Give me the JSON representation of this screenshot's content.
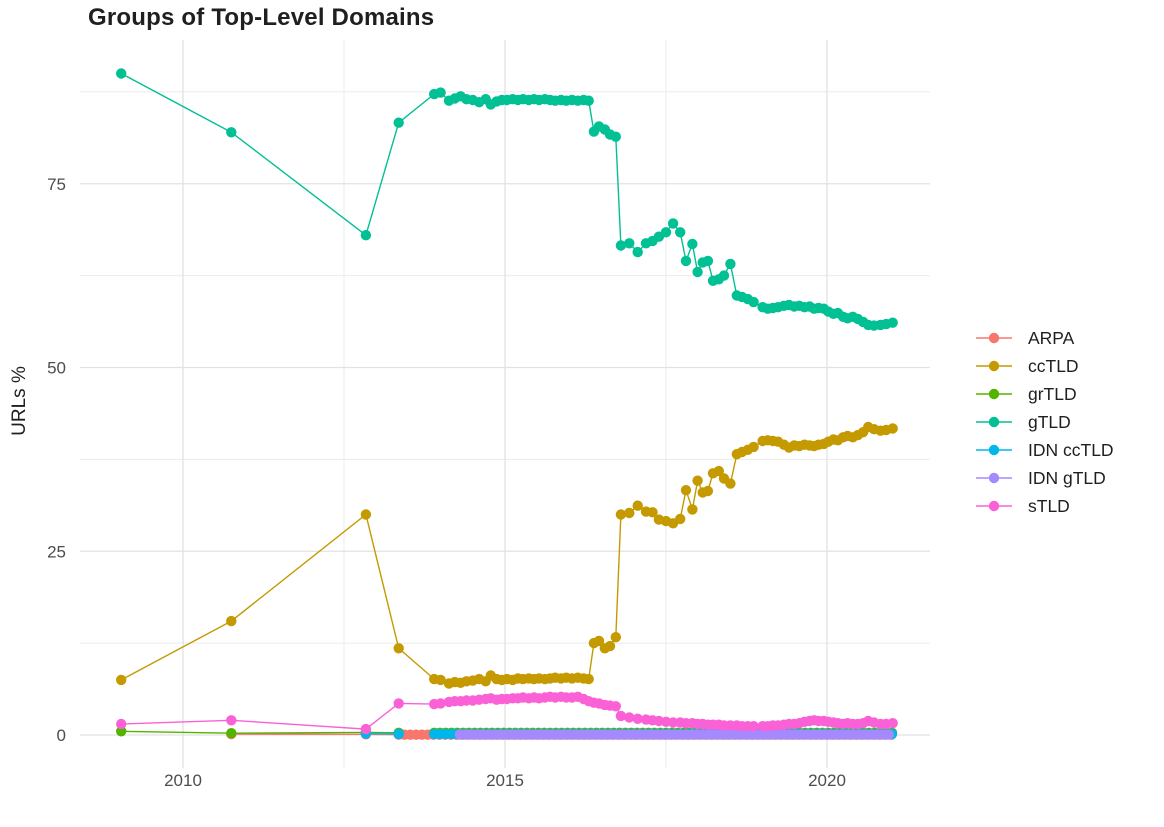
{
  "chart_data": {
    "type": "line",
    "title": "Groups of Top-Level Domains",
    "xlabel": "",
    "ylabel": "URLs %",
    "grid": "major and minor, light gray, no panel border (ggplot minimal theme)",
    "legend_position": "right",
    "axis_text_color": "#4d4d4d",
    "text_color": "#1f1f1f",
    "background_color": "#ffffff",
    "major_grid_color": "#e2e2e2",
    "minor_grid_color": "#ebebeb",
    "xlim": [
      2008.4,
      2021.6
    ],
    "ylim": [
      -4.5,
      94.6
    ],
    "x_ticks": [
      {
        "value": 2010,
        "label": "2010"
      },
      {
        "value": 2015,
        "label": "2015"
      },
      {
        "value": 2020,
        "label": "2020"
      }
    ],
    "x_minor_ticks": [
      2012.5,
      2017.5
    ],
    "y_ticks": [
      {
        "value": 0,
        "label": "0"
      },
      {
        "value": 25,
        "label": "25"
      },
      {
        "value": 50,
        "label": "50"
      },
      {
        "value": 75,
        "label": "75"
      }
    ],
    "y_minor_ticks": [
      12.5,
      37.5,
      62.5,
      87.5
    ],
    "series": [
      {
        "name": "ARPA",
        "color": "#F8766D",
        "points": [
          [
            2010.75,
            0.12
          ],
          [
            2012.84,
            0.1
          ]
        ],
        "flat": {
          "from": 2013.35,
          "to": 2021.02,
          "step": 0.09,
          "value": 0.04
        }
      },
      {
        "name": "ccTLD",
        "color": "#C49A00",
        "points": [
          [
            2009.04,
            7.5
          ],
          [
            2010.75,
            15.5
          ],
          [
            2012.84,
            30
          ],
          [
            2013.35,
            11.8
          ],
          [
            2013.9,
            7.6
          ],
          [
            2014.0,
            7.5
          ],
          [
            2014.13,
            7.0
          ],
          [
            2014.22,
            7.2
          ],
          [
            2014.31,
            7.1
          ],
          [
            2014.4,
            7.3
          ],
          [
            2014.5,
            7.4
          ],
          [
            2014.6,
            7.6
          ],
          [
            2014.7,
            7.3
          ],
          [
            2014.78,
            8.1
          ],
          [
            2014.87,
            7.6
          ],
          [
            2014.95,
            7.5
          ],
          [
            2015.03,
            7.6
          ],
          [
            2015.12,
            7.5
          ],
          [
            2015.2,
            7.7
          ],
          [
            2015.28,
            7.6
          ],
          [
            2015.37,
            7.7
          ],
          [
            2015.45,
            7.6
          ],
          [
            2015.53,
            7.7
          ],
          [
            2015.62,
            7.6
          ],
          [
            2015.7,
            7.7
          ],
          [
            2015.78,
            7.8
          ],
          [
            2015.87,
            7.7
          ],
          [
            2015.95,
            7.8
          ],
          [
            2016.04,
            7.7
          ],
          [
            2016.13,
            7.8
          ],
          [
            2016.22,
            7.7
          ],
          [
            2016.3,
            7.6
          ],
          [
            2016.38,
            12.5
          ],
          [
            2016.46,
            12.8
          ],
          [
            2016.55,
            11.8
          ],
          [
            2016.63,
            12.1
          ],
          [
            2016.72,
            13.3
          ],
          [
            2016.8,
            30.0
          ],
          [
            2016.93,
            30.2
          ],
          [
            2017.06,
            31.2
          ],
          [
            2017.19,
            30.4
          ],
          [
            2017.29,
            30.3
          ],
          [
            2017.39,
            29.3
          ],
          [
            2017.5,
            29.1
          ],
          [
            2017.61,
            28.8
          ],
          [
            2017.72,
            29.4
          ],
          [
            2017.81,
            33.3
          ],
          [
            2017.91,
            30.7
          ],
          [
            2017.99,
            34.6
          ],
          [
            2018.07,
            33.0
          ],
          [
            2018.15,
            33.2
          ],
          [
            2018.23,
            35.6
          ],
          [
            2018.32,
            35.9
          ],
          [
            2018.4,
            34.9
          ],
          [
            2018.5,
            34.2
          ],
          [
            2018.6,
            38.2
          ],
          [
            2018.68,
            38.5
          ],
          [
            2018.77,
            38.8
          ],
          [
            2018.86,
            39.2
          ],
          [
            2019.0,
            40.0
          ],
          [
            2019.08,
            40.1
          ],
          [
            2019.16,
            40.0
          ],
          [
            2019.24,
            39.9
          ],
          [
            2019.33,
            39.5
          ],
          [
            2019.41,
            39.1
          ],
          [
            2019.49,
            39.4
          ],
          [
            2019.57,
            39.3
          ],
          [
            2019.65,
            39.5
          ],
          [
            2019.73,
            39.4
          ],
          [
            2019.8,
            39.3
          ],
          [
            2019.87,
            39.5
          ],
          [
            2019.95,
            39.6
          ],
          [
            2020.02,
            39.9
          ],
          [
            2020.1,
            40.2
          ],
          [
            2020.17,
            40.1
          ],
          [
            2020.25,
            40.5
          ],
          [
            2020.32,
            40.7
          ],
          [
            2020.4,
            40.5
          ],
          [
            2020.48,
            40.8
          ],
          [
            2020.56,
            41.2
          ],
          [
            2020.64,
            41.9
          ],
          [
            2020.73,
            41.6
          ],
          [
            2020.83,
            41.4
          ],
          [
            2020.92,
            41.5
          ],
          [
            2021.02,
            41.7
          ]
        ]
      },
      {
        "name": "grTLD",
        "color": "#53B400",
        "points": [
          [
            2009.04,
            0.5
          ],
          [
            2010.75,
            0.25
          ],
          [
            2012.84,
            0.35
          ],
          [
            2013.35,
            0.3
          ]
        ],
        "flat": {
          "from": 2013.9,
          "to": 2021.02,
          "step": 0.09,
          "value": 0.3
        }
      },
      {
        "name": "gTLD",
        "color": "#00C094",
        "points": [
          [
            2009.04,
            90
          ],
          [
            2010.75,
            82
          ],
          [
            2012.84,
            68
          ],
          [
            2013.35,
            83.3
          ],
          [
            2013.9,
            87.2
          ],
          [
            2014.0,
            87.4
          ],
          [
            2014.13,
            86.3
          ],
          [
            2014.22,
            86.6
          ],
          [
            2014.31,
            86.9
          ],
          [
            2014.4,
            86.5
          ],
          [
            2014.5,
            86.4
          ],
          [
            2014.6,
            86.1
          ],
          [
            2014.7,
            86.5
          ],
          [
            2014.78,
            85.8
          ],
          [
            2014.87,
            86.2
          ],
          [
            2014.95,
            86.4
          ],
          [
            2015.03,
            86.4
          ],
          [
            2015.12,
            86.5
          ],
          [
            2015.2,
            86.4
          ],
          [
            2015.28,
            86.5
          ],
          [
            2015.37,
            86.4
          ],
          [
            2015.45,
            86.5
          ],
          [
            2015.53,
            86.4
          ],
          [
            2015.62,
            86.5
          ],
          [
            2015.7,
            86.4
          ],
          [
            2015.78,
            86.3
          ],
          [
            2015.87,
            86.4
          ],
          [
            2015.95,
            86.3
          ],
          [
            2016.04,
            86.4
          ],
          [
            2016.13,
            86.3
          ],
          [
            2016.22,
            86.4
          ],
          [
            2016.3,
            86.3
          ],
          [
            2016.38,
            82.1
          ],
          [
            2016.46,
            82.8
          ],
          [
            2016.55,
            82.4
          ],
          [
            2016.63,
            81.7
          ],
          [
            2016.72,
            81.4
          ],
          [
            2016.8,
            66.6
          ],
          [
            2016.93,
            66.9
          ],
          [
            2017.06,
            65.7
          ],
          [
            2017.19,
            66.9
          ],
          [
            2017.29,
            67.2
          ],
          [
            2017.39,
            67.8
          ],
          [
            2017.5,
            68.4
          ],
          [
            2017.61,
            69.6
          ],
          [
            2017.72,
            68.4
          ],
          [
            2017.81,
            64.5
          ],
          [
            2017.91,
            66.8
          ],
          [
            2017.99,
            63.0
          ],
          [
            2018.07,
            64.3
          ],
          [
            2018.15,
            64.5
          ],
          [
            2018.23,
            61.8
          ],
          [
            2018.32,
            62.0
          ],
          [
            2018.4,
            62.5
          ],
          [
            2018.5,
            64.1
          ],
          [
            2018.6,
            59.8
          ],
          [
            2018.68,
            59.6
          ],
          [
            2018.77,
            59.3
          ],
          [
            2018.86,
            58.9
          ],
          [
            2019.0,
            58.2
          ],
          [
            2019.08,
            58.0
          ],
          [
            2019.16,
            58.1
          ],
          [
            2019.24,
            58.2
          ],
          [
            2019.33,
            58.4
          ],
          [
            2019.41,
            58.5
          ],
          [
            2019.49,
            58.3
          ],
          [
            2019.57,
            58.4
          ],
          [
            2019.65,
            58.2
          ],
          [
            2019.73,
            58.3
          ],
          [
            2019.8,
            58.0
          ],
          [
            2019.87,
            58.1
          ],
          [
            2019.95,
            58.0
          ],
          [
            2020.02,
            57.6
          ],
          [
            2020.1,
            57.3
          ],
          [
            2020.17,
            57.4
          ],
          [
            2020.25,
            56.9
          ],
          [
            2020.32,
            56.7
          ],
          [
            2020.4,
            56.9
          ],
          [
            2020.48,
            56.6
          ],
          [
            2020.56,
            56.2
          ],
          [
            2020.64,
            55.8
          ],
          [
            2020.73,
            55.7
          ],
          [
            2020.83,
            55.8
          ],
          [
            2020.92,
            55.9
          ],
          [
            2021.02,
            56.1
          ]
        ]
      },
      {
        "name": "IDN ccTLD",
        "color": "#00B6EB",
        "points": [
          [
            2012.84,
            0.18
          ],
          [
            2013.35,
            0.15
          ]
        ],
        "flat": {
          "from": 2013.9,
          "to": 2021.02,
          "step": 0.09,
          "value": 0.13
        }
      },
      {
        "name": "IDN gTLD",
        "color": "#A58AFF",
        "points": [],
        "flat": {
          "from": 2014.3,
          "to": 2021.02,
          "step": 0.09,
          "value": 0.05
        }
      },
      {
        "name": "sTLD",
        "color": "#FB61D7",
        "points": [
          [
            2009.04,
            1.5
          ],
          [
            2010.75,
            2.0
          ],
          [
            2012.84,
            0.8
          ],
          [
            2013.35,
            4.3
          ],
          [
            2013.9,
            4.2
          ],
          [
            2014.0,
            4.3
          ],
          [
            2014.13,
            4.5
          ],
          [
            2014.22,
            4.6
          ],
          [
            2014.31,
            4.6
          ],
          [
            2014.4,
            4.7
          ],
          [
            2014.5,
            4.7
          ],
          [
            2014.6,
            4.8
          ],
          [
            2014.7,
            4.9
          ],
          [
            2014.78,
            5.0
          ],
          [
            2014.87,
            4.8
          ],
          [
            2014.95,
            4.9
          ],
          [
            2015.03,
            4.9
          ],
          [
            2015.12,
            5.0
          ],
          [
            2015.2,
            5.0
          ],
          [
            2015.28,
            5.1
          ],
          [
            2015.37,
            5.0
          ],
          [
            2015.45,
            5.1
          ],
          [
            2015.53,
            5.0
          ],
          [
            2015.62,
            5.1
          ],
          [
            2015.7,
            5.2
          ],
          [
            2015.78,
            5.1
          ],
          [
            2015.87,
            5.2
          ],
          [
            2015.95,
            5.1
          ],
          [
            2016.04,
            5.1
          ],
          [
            2016.13,
            5.2
          ],
          [
            2016.22,
            4.9
          ],
          [
            2016.3,
            4.6
          ],
          [
            2016.38,
            4.4
          ],
          [
            2016.46,
            4.3
          ],
          [
            2016.55,
            4.1
          ],
          [
            2016.63,
            4.0
          ],
          [
            2016.72,
            3.9
          ],
          [
            2016.8,
            2.6
          ],
          [
            2016.93,
            2.4
          ],
          [
            2017.06,
            2.2
          ],
          [
            2017.19,
            2.1
          ],
          [
            2017.29,
            2.0
          ],
          [
            2017.39,
            1.9
          ],
          [
            2017.5,
            1.8
          ],
          [
            2017.61,
            1.7
          ],
          [
            2017.72,
            1.7
          ],
          [
            2017.81,
            1.6
          ],
          [
            2017.91,
            1.6
          ],
          [
            2017.99,
            1.5
          ],
          [
            2018.07,
            1.5
          ],
          [
            2018.15,
            1.4
          ],
          [
            2018.23,
            1.4
          ],
          [
            2018.32,
            1.4
          ],
          [
            2018.4,
            1.3
          ],
          [
            2018.5,
            1.3
          ],
          [
            2018.6,
            1.3
          ],
          [
            2018.68,
            1.2
          ],
          [
            2018.77,
            1.2
          ],
          [
            2018.86,
            1.2
          ],
          [
            2019.0,
            1.2
          ],
          [
            2019.08,
            1.2
          ],
          [
            2019.16,
            1.3
          ],
          [
            2019.24,
            1.3
          ],
          [
            2019.33,
            1.4
          ],
          [
            2019.41,
            1.5
          ],
          [
            2019.49,
            1.5
          ],
          [
            2019.57,
            1.6
          ],
          [
            2019.65,
            1.8
          ],
          [
            2019.73,
            1.9
          ],
          [
            2019.8,
            2.0
          ],
          [
            2019.87,
            1.9
          ],
          [
            2019.95,
            1.9
          ],
          [
            2020.02,
            1.8
          ],
          [
            2020.1,
            1.7
          ],
          [
            2020.17,
            1.6
          ],
          [
            2020.25,
            1.5
          ],
          [
            2020.32,
            1.6
          ],
          [
            2020.4,
            1.5
          ],
          [
            2020.48,
            1.5
          ],
          [
            2020.56,
            1.6
          ],
          [
            2020.64,
            1.9
          ],
          [
            2020.73,
            1.7
          ],
          [
            2020.83,
            1.5
          ],
          [
            2020.92,
            1.5
          ],
          [
            2021.02,
            1.6
          ]
        ]
      }
    ]
  }
}
